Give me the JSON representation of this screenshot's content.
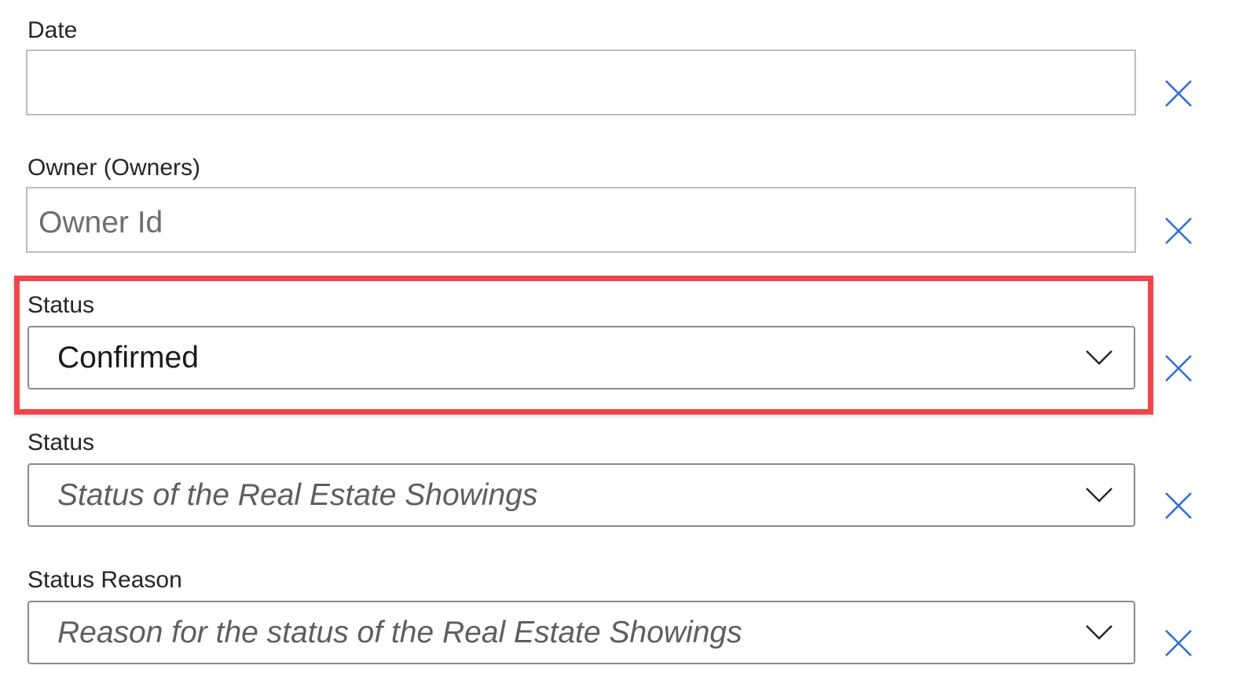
{
  "fields": {
    "date": {
      "label": "Date",
      "value": ""
    },
    "owner": {
      "label": "Owner (Owners)",
      "placeholder": "Owner Id"
    },
    "status_selected": {
      "label": "Status",
      "value": "Confirmed"
    },
    "status_placeholder": {
      "label": "Status",
      "placeholder": "Status of the Real Estate Showings"
    },
    "status_reason": {
      "label": "Status Reason",
      "placeholder": "Reason for the status of the Real Estate Showings"
    }
  },
  "icons": {
    "clear": "close-icon",
    "dropdown": "chevron-down-icon"
  },
  "colors": {
    "clear_icon": "#2f6fd6",
    "highlight_border": "#f2454b",
    "label_text": "#252525",
    "placeholder_text": "#5e5e5e"
  }
}
